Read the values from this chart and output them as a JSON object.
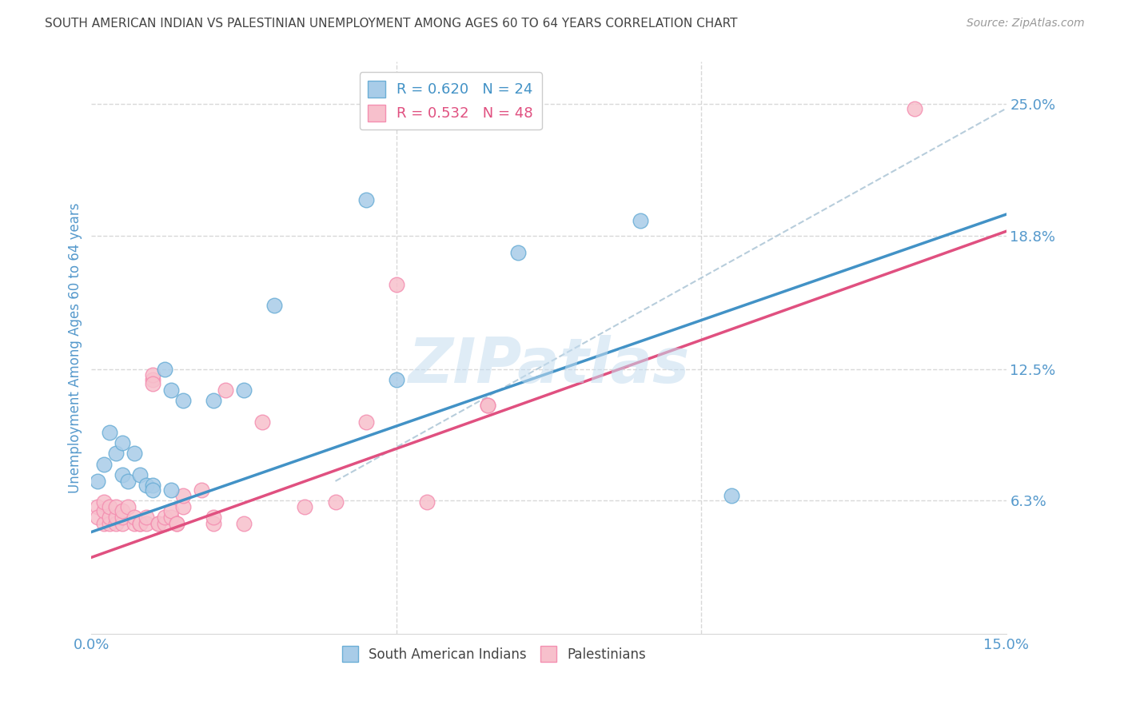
{
  "title": "SOUTH AMERICAN INDIAN VS PALESTINIAN UNEMPLOYMENT AMONG AGES 60 TO 64 YEARS CORRELATION CHART",
  "source": "Source: ZipAtlas.com",
  "ylabel": "Unemployment Among Ages 60 to 64 years",
  "xlim": [
    0,
    0.15
  ],
  "ylim": [
    0,
    0.27
  ],
  "yticks_right": [
    0.063,
    0.125,
    0.188,
    0.25
  ],
  "yticklabels_right": [
    "6.3%",
    "12.5%",
    "18.8%",
    "25.0%"
  ],
  "watermark": "ZIPatlas",
  "blue_color": "#a8cce8",
  "blue_edge_color": "#6baed6",
  "pink_color": "#f7c0cc",
  "pink_edge_color": "#f48fb1",
  "blue_line_color": "#4292c6",
  "pink_line_color": "#e05080",
  "ref_line_color": "#b0c8d8",
  "background_color": "#ffffff",
  "grid_color": "#d8d8d8",
  "title_color": "#444444",
  "axis_label_color": "#5599cc",
  "right_tick_color": "#5599cc",
  "legend_blue_text_color": "#4292c6",
  "legend_pink_text_color": "#e05080",
  "blue_scatter": [
    [
      0.001,
      0.072
    ],
    [
      0.002,
      0.08
    ],
    [
      0.003,
      0.095
    ],
    [
      0.004,
      0.085
    ],
    [
      0.005,
      0.09
    ],
    [
      0.005,
      0.075
    ],
    [
      0.006,
      0.072
    ],
    [
      0.007,
      0.085
    ],
    [
      0.008,
      0.075
    ],
    [
      0.009,
      0.07
    ],
    [
      0.01,
      0.07
    ],
    [
      0.01,
      0.068
    ],
    [
      0.012,
      0.125
    ],
    [
      0.013,
      0.068
    ],
    [
      0.013,
      0.115
    ],
    [
      0.015,
      0.11
    ],
    [
      0.02,
      0.11
    ],
    [
      0.025,
      0.115
    ],
    [
      0.03,
      0.155
    ],
    [
      0.05,
      0.12
    ],
    [
      0.07,
      0.18
    ],
    [
      0.09,
      0.195
    ],
    [
      0.105,
      0.065
    ],
    [
      0.045,
      0.205
    ]
  ],
  "pink_scatter": [
    [
      0.001,
      0.06
    ],
    [
      0.001,
      0.055
    ],
    [
      0.002,
      0.052
    ],
    [
      0.002,
      0.058
    ],
    [
      0.002,
      0.062
    ],
    [
      0.003,
      0.052
    ],
    [
      0.003,
      0.055
    ],
    [
      0.003,
      0.06
    ],
    [
      0.004,
      0.052
    ],
    [
      0.004,
      0.055
    ],
    [
      0.004,
      0.06
    ],
    [
      0.005,
      0.052
    ],
    [
      0.005,
      0.055
    ],
    [
      0.005,
      0.058
    ],
    [
      0.006,
      0.06
    ],
    [
      0.007,
      0.052
    ],
    [
      0.007,
      0.055
    ],
    [
      0.008,
      0.052
    ],
    [
      0.008,
      0.052
    ],
    [
      0.009,
      0.052
    ],
    [
      0.009,
      0.055
    ],
    [
      0.01,
      0.12
    ],
    [
      0.01,
      0.122
    ],
    [
      0.01,
      0.118
    ],
    [
      0.011,
      0.052
    ],
    [
      0.011,
      0.052
    ],
    [
      0.012,
      0.052
    ],
    [
      0.012,
      0.055
    ],
    [
      0.013,
      0.055
    ],
    [
      0.013,
      0.058
    ],
    [
      0.014,
      0.052
    ],
    [
      0.014,
      0.052
    ],
    [
      0.015,
      0.06
    ],
    [
      0.015,
      0.065
    ],
    [
      0.018,
      0.068
    ],
    [
      0.02,
      0.052
    ],
    [
      0.02,
      0.055
    ],
    [
      0.022,
      0.115
    ],
    [
      0.025,
      0.052
    ],
    [
      0.028,
      0.1
    ],
    [
      0.035,
      0.06
    ],
    [
      0.04,
      0.062
    ],
    [
      0.045,
      0.1
    ],
    [
      0.05,
      0.165
    ],
    [
      0.055,
      0.062
    ],
    [
      0.065,
      0.108
    ],
    [
      0.065,
      0.108
    ],
    [
      0.135,
      0.248
    ]
  ],
  "blue_line": [
    [
      0.0,
      0.048
    ],
    [
      0.15,
      0.198
    ]
  ],
  "pink_line": [
    [
      0.0,
      0.036
    ],
    [
      0.15,
      0.19
    ]
  ],
  "ref_line": [
    [
      0.04,
      0.072
    ],
    [
      0.15,
      0.248
    ]
  ]
}
